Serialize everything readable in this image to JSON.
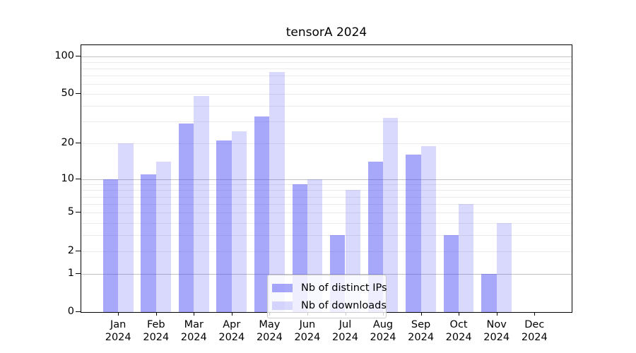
{
  "title": "tensorA 2024",
  "legend": {
    "items": [
      {
        "label": "Nb of distinct IPs",
        "series_key": "ips"
      },
      {
        "label": "Nb of downloads",
        "series_key": "downloads"
      }
    ]
  },
  "colors": {
    "ips_bar": "rgba(66,66,244,0.46)",
    "downloads_bar": "rgba(66,66,244,0.20)",
    "grid_major": "#c2c2c2",
    "grid_minor": "#ebebeb",
    "axis_line": "#000000",
    "text": "#000000",
    "legend_bg": "rgba(255,255,255,0.8)",
    "legend_border": "#cccccc"
  },
  "y_axis": {
    "scale": "log10(1+y)",
    "max": 122,
    "labeled_ticks": [
      0,
      1,
      2,
      5,
      10,
      20,
      50,
      100
    ],
    "major_gridlines": [
      1,
      10,
      100
    ],
    "minor_gridlines": [
      2,
      3,
      4,
      6,
      7,
      8,
      9,
      20,
      30,
      40,
      60,
      70,
      80,
      90
    ],
    "labeled_minor_gridlines": [
      2,
      5,
      20,
      50
    ]
  },
  "x_axis": {
    "months": [
      "Jan",
      "Feb",
      "Mar",
      "Apr",
      "May",
      "Jun",
      "Jul",
      "Aug",
      "Sep",
      "Oct",
      "Nov",
      "Dec"
    ],
    "year": "2024"
  },
  "chart_data": {
    "type": "bar",
    "title": "tensorA 2024",
    "categories": [
      "Jan 2024",
      "Feb 2024",
      "Mar 2024",
      "Apr 2024",
      "May 2024",
      "Jun 2024",
      "Jul 2024",
      "Aug 2024",
      "Sep 2024",
      "Oct 2024",
      "Nov 2024",
      "Dec 2024"
    ],
    "series": [
      {
        "name": "Nb of distinct IPs",
        "values": [
          10,
          11,
          29,
          21,
          33,
          9,
          3,
          14,
          16,
          3,
          1,
          0
        ]
      },
      {
        "name": "Nb of downloads",
        "values": [
          20,
          14,
          48,
          25,
          75,
          10,
          8,
          32,
          19,
          6,
          4,
          0
        ]
      }
    ],
    "xlabel": "",
    "ylabel": "",
    "yscale": "log1p",
    "ylim": [
      0,
      122
    ],
    "yticks": [
      0,
      1,
      2,
      5,
      10,
      20,
      50,
      100
    ],
    "grid": true,
    "legend_position": "lower center"
  }
}
